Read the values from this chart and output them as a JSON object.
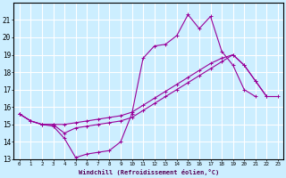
{
  "title": "",
  "xlabel": "Windchill (Refroidissement éolien,°C)",
  "bg_color": "#cceeff",
  "grid_color": "#ffffff",
  "line_color": "#990099",
  "xlim": [
    -0.5,
    23.5
  ],
  "ylim": [
    13,
    22
  ],
  "yticks": [
    13,
    14,
    15,
    16,
    17,
    18,
    19,
    20,
    21
  ],
  "xticks": [
    0,
    1,
    2,
    3,
    4,
    5,
    6,
    7,
    8,
    9,
    10,
    11,
    12,
    13,
    14,
    15,
    16,
    17,
    18,
    19,
    20,
    21,
    22,
    23
  ],
  "line1_y": [
    15.6,
    15.2,
    15.0,
    14.9,
    14.2,
    13.1,
    13.3,
    13.4,
    13.5,
    14.0,
    15.6,
    18.8,
    19.5,
    19.6,
    20.1,
    21.3,
    20.5,
    21.2,
    19.2,
    18.4,
    17.0,
    16.6,
    null,
    null
  ],
  "line2_y": [
    15.6,
    15.2,
    15.0,
    15.0,
    15.0,
    15.1,
    15.2,
    15.3,
    15.4,
    15.5,
    15.7,
    16.1,
    16.5,
    16.9,
    17.3,
    17.7,
    18.1,
    18.5,
    18.8,
    19.0,
    18.4,
    17.5,
    16.6,
    null
  ],
  "line3_y": [
    15.6,
    15.2,
    15.0,
    15.0,
    14.5,
    14.8,
    14.9,
    15.0,
    15.1,
    15.2,
    15.4,
    15.8,
    16.2,
    16.6,
    17.0,
    17.4,
    17.8,
    18.2,
    18.6,
    19.0,
    18.4,
    17.5,
    16.6,
    16.6
  ]
}
